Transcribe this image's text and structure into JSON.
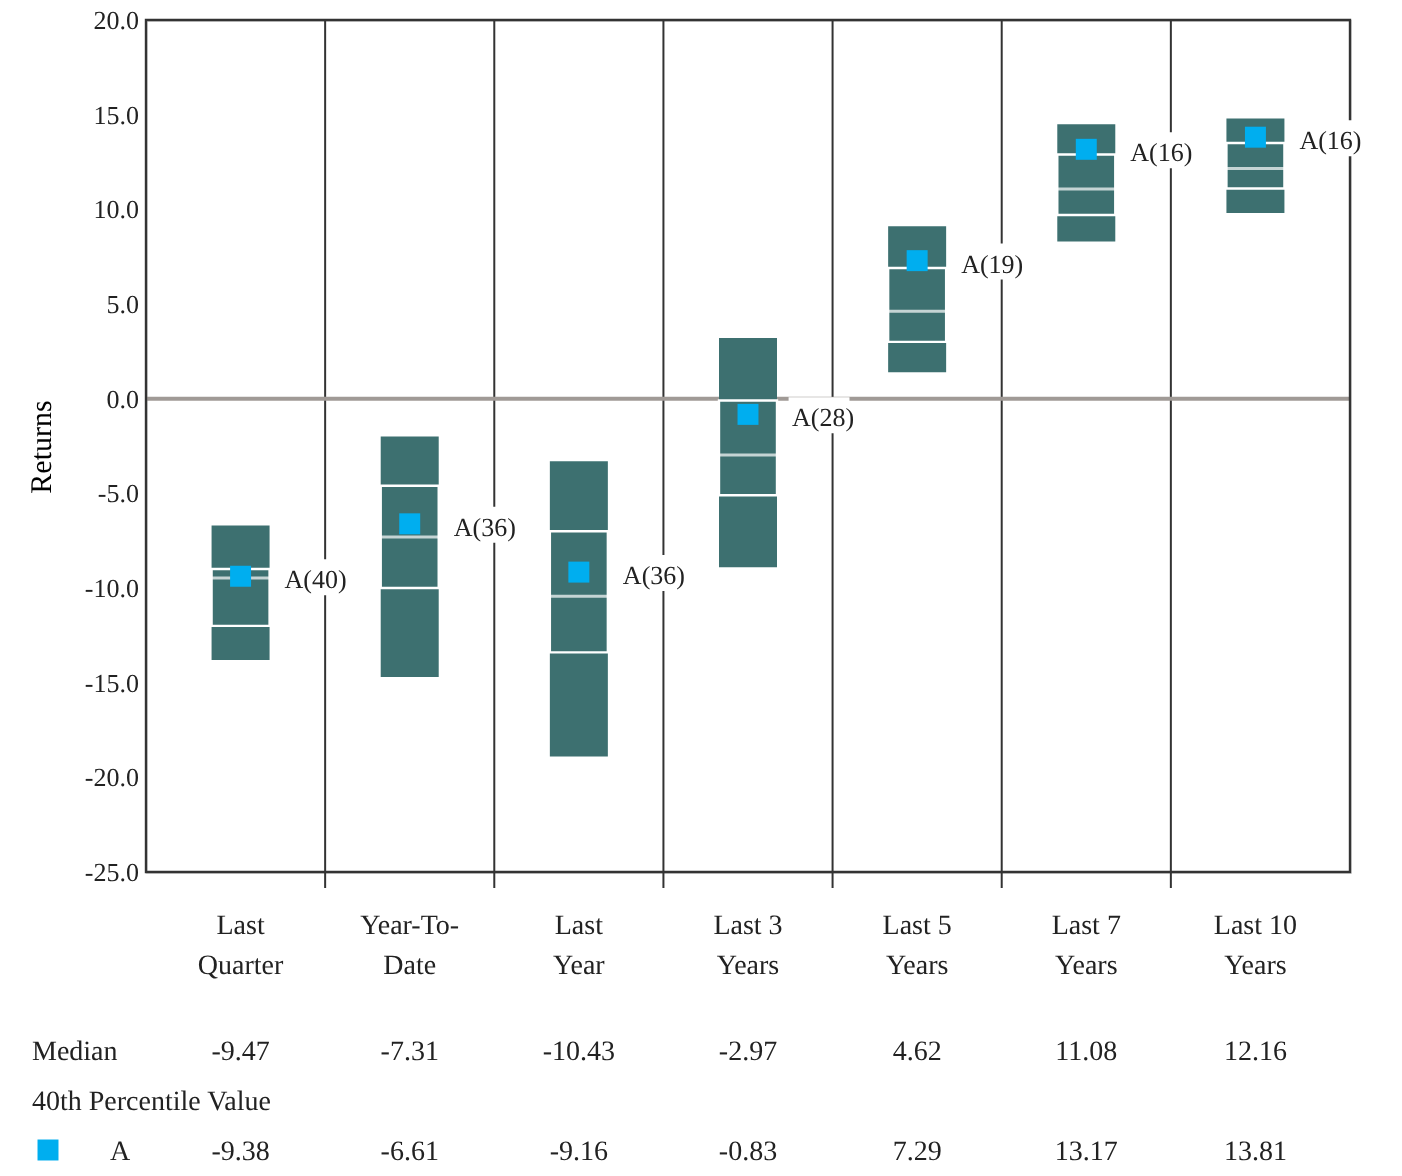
{
  "chart_data": {
    "type": "box",
    "ylabel": "Returns",
    "categories": [
      "Last\nQuarter",
      "Year-To-\nDate",
      "Last\nYear",
      "Last 3\nYears",
      "Last 5\nYears",
      "Last 7\nYears",
      "Last 10\nYears"
    ],
    "color": "#3d7070",
    "boxes": [
      {
        "low": -13.8,
        "q1": -12.0,
        "median": -9.47,
        "q3": -9.0,
        "high": -6.7
      },
      {
        "low": -14.7,
        "q1": -10.0,
        "median": -7.31,
        "q3": -4.6,
        "high": -2.0
      },
      {
        "low": -18.9,
        "q1": -13.4,
        "median": -10.43,
        "q3": -7.0,
        "high": -3.3
      },
      {
        "low": -8.9,
        "q1": -5.1,
        "median": -2.97,
        "q3": -0.1,
        "high": 3.2
      },
      {
        "low": 1.4,
        "q1": 3.0,
        "median": 4.62,
        "q3": 6.9,
        "high": 9.1
      },
      {
        "low": 8.3,
        "q1": 9.7,
        "median": 11.08,
        "q3": 12.9,
        "high": 14.5
      },
      {
        "low": 9.8,
        "q1": 11.1,
        "median": 12.16,
        "q3": 13.5,
        "high": 14.8
      }
    ],
    "series": [
      {
        "name": "A",
        "type": "scatter",
        "color": "#00aeef",
        "marker": "square",
        "values": [
          -9.38,
          -6.61,
          -9.16,
          -0.83,
          7.29,
          13.17,
          13.81
        ],
        "value_labels": [
          "A(40)",
          "A(36)",
          "A(36)",
          "A(28)",
          "A(19)",
          "A(16)",
          "A(16)"
        ]
      }
    ],
    "ylim": [
      -25,
      20
    ],
    "yticks": [
      {
        "value": -25,
        "label": "-25.0"
      },
      {
        "value": -20,
        "label": "-20.0"
      },
      {
        "value": -15,
        "label": "-15.0"
      },
      {
        "value": -10,
        "label": "-10.0"
      },
      {
        "value": -5,
        "label": "-5.0"
      },
      {
        "value": 0,
        "label": "0.0"
      },
      {
        "value": 5,
        "label": "5.0"
      },
      {
        "value": 10,
        "label": "10.0"
      },
      {
        "value": 15,
        "label": "15.0"
      },
      {
        "value": 20,
        "label": "20.0"
      }
    ],
    "ref_lines": [
      {
        "axis": "y",
        "value": 0,
        "color": "#a09a96"
      }
    ],
    "grid": "x",
    "legend": "bottom",
    "annotations": [
      "Median",
      "-9.47",
      "-7.31",
      "-10.43",
      "-2.97",
      "4.62",
      "11.08",
      "12.16",
      "40th Percentile Value",
      "-9.38",
      "-6.61",
      "-9.16",
      "-0.83",
      "7.29",
      "13.17",
      "13.81"
    ]
  }
}
